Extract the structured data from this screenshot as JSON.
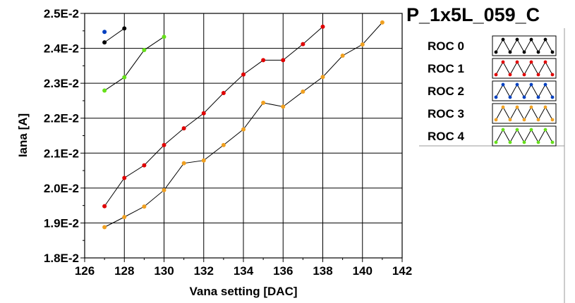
{
  "chart_data": {
    "type": "line",
    "title": "P_1x5L_059_C",
    "xlabel": "Vana setting [DAC]",
    "ylabel": "Iana [A]",
    "xlim": [
      126,
      142
    ],
    "ylim": [
      0.018,
      0.025
    ],
    "x_ticks": [
      "126",
      "128",
      "130",
      "132",
      "134",
      "136",
      "138",
      "140",
      "142"
    ],
    "y_ticks": [
      "1.8E-2",
      "1.9E-2",
      "2.0E-2",
      "2.1E-2",
      "2.2E-2",
      "2.3E-2",
      "2.4E-2",
      "2.5E-2"
    ],
    "grid": true,
    "legend_position": "right",
    "series": [
      {
        "name": "ROC 0",
        "color": "#000000",
        "x": [
          127,
          128
        ],
        "y": [
          0.02417,
          0.02457
        ]
      },
      {
        "name": "ROC 1",
        "color": "#e00000",
        "x": [
          127,
          128,
          129,
          130,
          131,
          132,
          133,
          134,
          135,
          136,
          137,
          138
        ],
        "y": [
          0.01948,
          0.02029,
          0.02065,
          0.02123,
          0.02171,
          0.02214,
          0.02272,
          0.02325,
          0.02366,
          0.02366,
          0.02412,
          0.02462
        ]
      },
      {
        "name": "ROC 2",
        "color": "#0040c0",
        "x": [
          127
        ],
        "y": [
          0.02447
        ]
      },
      {
        "name": "ROC 3",
        "color": "#f0a020",
        "x": [
          127,
          128,
          129,
          130,
          131,
          132,
          133,
          134,
          135,
          136,
          137,
          138,
          139,
          140,
          141
        ],
        "y": [
          0.01888,
          0.01917,
          0.01947,
          0.01994,
          0.02071,
          0.02079,
          0.02123,
          0.02168,
          0.02244,
          0.02233,
          0.02276,
          0.02318,
          0.02379,
          0.02411,
          0.02474
        ]
      },
      {
        "name": "ROC 4",
        "color": "#66e01a",
        "x": [
          127,
          128,
          129,
          130
        ],
        "y": [
          0.02279,
          0.02317,
          0.02395,
          0.02433
        ]
      }
    ]
  }
}
